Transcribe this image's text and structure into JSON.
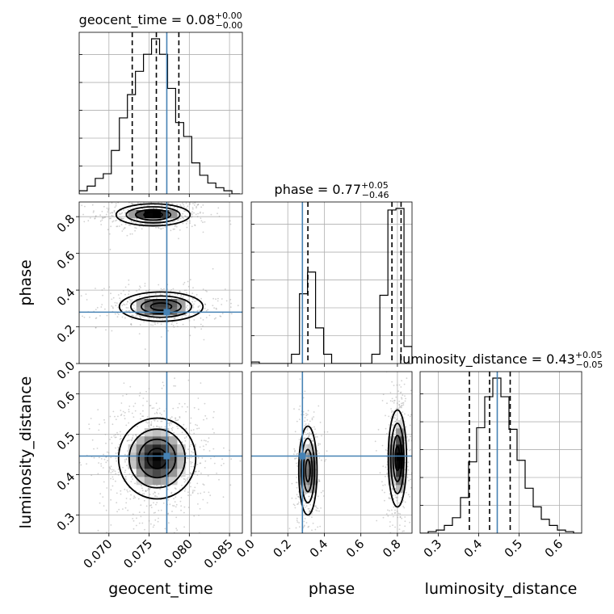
{
  "chart_data": {
    "type": "corner",
    "parameters": [
      "geocent_time",
      "phase",
      "luminosity_distance"
    ],
    "axis_labels": {
      "geocent_time": "geocent_time",
      "phase": "phase",
      "luminosity_distance": "luminosity_distance"
    },
    "ranges": {
      "geocent_time": [
        0.0663,
        0.0866
      ],
      "phase": [
        0.0,
        0.88
      ],
      "luminosity_distance": [
        0.255,
        0.655
      ]
    },
    "ticks": {
      "geocent_time": [
        "0.070",
        "0.075",
        "0.080",
        "0.085"
      ],
      "phase": [
        "0.0",
        "0.2",
        "0.4",
        "0.6",
        "0.8"
      ],
      "luminosity_distance": [
        "0.3",
        "0.4",
        "0.5",
        "0.6"
      ]
    },
    "truth": {
      "geocent_time": 0.0772,
      "phase": 0.28,
      "luminosity_distance": 0.446
    },
    "marginals": [
      {
        "parameter": "geocent_time",
        "title": {
          "name": "geocent_time",
          "median": "0.08",
          "plus": "+0.00",
          "minus": "−0.00"
        },
        "quantiles": [
          0.0729,
          0.0759,
          0.0787
        ],
        "bin_edges": [
          0.0663,
          0.0673,
          0.0683,
          0.0693,
          0.0703,
          0.0713,
          0.0723,
          0.0733,
          0.0743,
          0.0753,
          0.0763,
          0.0773,
          0.0783,
          0.0793,
          0.0803,
          0.0813,
          0.0823,
          0.0833,
          0.0843,
          0.0853,
          0.0863
        ],
        "counts": [
          0.02,
          0.05,
          0.1,
          0.13,
          0.28,
          0.49,
          0.64,
          0.79,
          0.9,
          1.0,
          0.9,
          0.68,
          0.46,
          0.37,
          0.2,
          0.12,
          0.07,
          0.04,
          0.02,
          0.0
        ]
      },
      {
        "parameter": "phase",
        "title": {
          "name": "phase",
          "median": "0.77",
          "plus": "+0.05",
          "minus": "−0.46"
        },
        "quantiles": [
          0.31,
          0.77,
          0.82
        ],
        "bin_edges": [
          0.0,
          0.044,
          0.088,
          0.132,
          0.176,
          0.22,
          0.264,
          0.308,
          0.352,
          0.396,
          0.44,
          0.484,
          0.528,
          0.572,
          0.616,
          0.66,
          0.704,
          0.748,
          0.792,
          0.836,
          0.88
        ],
        "counts": [
          0.01,
          0.0,
          0.0,
          0.0,
          0.0,
          0.06,
          0.45,
          0.59,
          0.23,
          0.06,
          0.0,
          0.0,
          0.0,
          0.0,
          0.0,
          0.06,
          0.44,
          0.99,
          1.0,
          0.11
        ]
      },
      {
        "parameter": "luminosity_distance",
        "title": {
          "name": "luminosity_distance",
          "median": "0.43",
          "plus": "+0.05",
          "minus": "−0.05"
        },
        "quantiles": [
          0.377,
          0.427,
          0.478
        ],
        "bin_edges": [
          0.255,
          0.275,
          0.295,
          0.315,
          0.335,
          0.355,
          0.375,
          0.395,
          0.415,
          0.435,
          0.455,
          0.475,
          0.495,
          0.515,
          0.535,
          0.555,
          0.575,
          0.595,
          0.615,
          0.635,
          0.655
        ],
        "counts": [
          0.0,
          0.01,
          0.02,
          0.05,
          0.1,
          0.23,
          0.46,
          0.68,
          0.88,
          1.0,
          0.88,
          0.67,
          0.47,
          0.29,
          0.17,
          0.09,
          0.05,
          0.02,
          0.01,
          0.0
        ]
      }
    ],
    "joint": [
      {
        "x": "geocent_time",
        "y": "phase",
        "modes": [
          {
            "center": [
              0.0755,
              0.81
            ],
            "sigma": [
              0.0023,
              0.03
            ],
            "weight": 0.52
          },
          {
            "center": [
              0.0765,
              0.31
            ],
            "sigma": [
              0.0026,
              0.04
            ],
            "weight": 0.48
          }
        ]
      },
      {
        "x": "geocent_time",
        "y": "luminosity_distance",
        "modes": [
          {
            "center": [
              0.076,
              0.44
            ],
            "sigma": [
              0.0024,
              0.05
            ],
            "weight": 1.0
          }
        ]
      },
      {
        "x": "phase",
        "y": "luminosity_distance",
        "modes": [
          {
            "center": [
              0.31,
              0.41
            ],
            "sigma": [
              0.025,
              0.055
            ],
            "weight": 0.45
          },
          {
            "center": [
              0.8,
              0.44
            ],
            "sigma": [
              0.025,
              0.06
            ],
            "weight": 0.55
          }
        ]
      }
    ]
  },
  "colors": {
    "truth": "#4682b4",
    "hist": "#000000",
    "grid": "#b0b0b0",
    "scatter": "#9a9a9a"
  }
}
